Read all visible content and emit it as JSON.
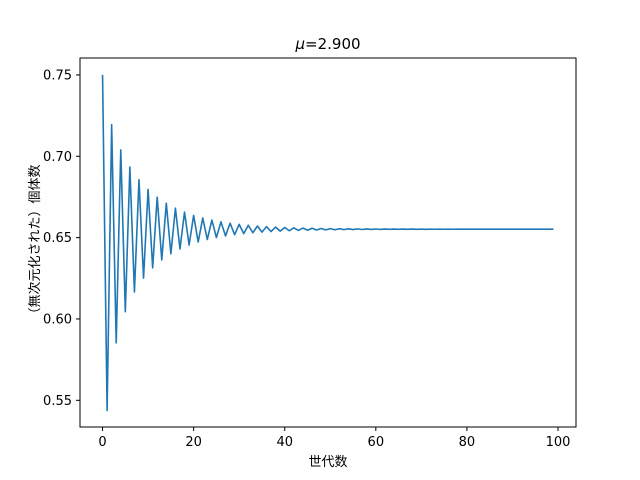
{
  "chart_data": {
    "type": "line",
    "title_symbol": "μ",
    "title_value": "=2.900",
    "xlabel": "世代数",
    "ylabel": "（無次元化された）個体数",
    "xlim": [
      -4.95,
      103.95
    ],
    "ylim": [
      0.5336,
      0.7604
    ],
    "xticks": [
      0,
      20,
      40,
      60,
      80,
      100
    ],
    "xtick_labels": [
      "0",
      "20",
      "40",
      "60",
      "80",
      "100"
    ],
    "yticks": [
      0.55,
      0.6,
      0.65,
      0.7,
      0.75
    ],
    "ytick_labels": [
      "0.55",
      "0.60",
      "0.65",
      "0.70",
      "0.75"
    ],
    "grid": false,
    "legend": "none",
    "series": [
      {
        "color": "#1f77b4",
        "mu": 2.9,
        "x0": 0.75,
        "generations": 100
      }
    ]
  }
}
